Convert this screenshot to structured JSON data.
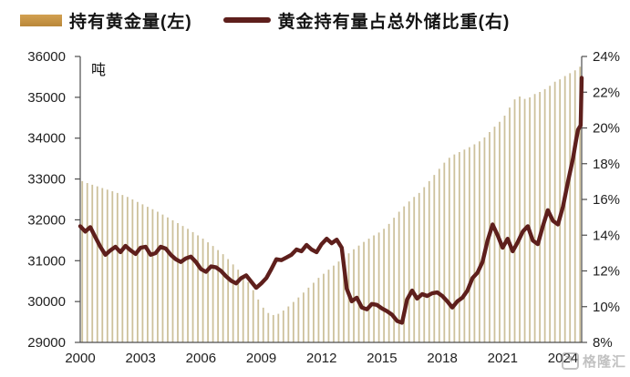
{
  "legend": {
    "bar_label": "持有黄金量(左)",
    "line_label": "黄金持有量占总外储比重(右)"
  },
  "watermark": {
    "text": "格隆汇"
  },
  "colors": {
    "bar": "#cdc19c",
    "line": "#5e1f1c",
    "legend_bar": "#c3923f",
    "axis": "#4d4d4d",
    "tick_text": "#1f1f1f"
  },
  "chart_data": {
    "type": "bar",
    "subtype": "bar+line combo, dual axis",
    "title": "",
    "unit_label": "吨",
    "legend_position": "top",
    "grid": false,
    "x_axis": {
      "ticks": [
        2000,
        2003,
        2006,
        2009,
        2012,
        2015,
        2018,
        2021,
        2024
      ],
      "range": [
        2000,
        2024.93
      ]
    },
    "left_axis": {
      "label": "吨",
      "ticks": [
        36000,
        35000,
        34000,
        33000,
        32000,
        31000,
        30000,
        29000
      ],
      "range": [
        29000,
        36000
      ]
    },
    "right_axis": {
      "ticks": [
        "24%",
        "22%",
        "20%",
        "18%",
        "16%",
        "14%",
        "12%",
        "10%",
        "8%"
      ],
      "tick_values": [
        24,
        22,
        20,
        18,
        16,
        14,
        12,
        10,
        8
      ],
      "range": [
        8,
        24
      ]
    },
    "series": [
      {
        "name": "持有黄金量(左)",
        "type": "bar",
        "axis": "left",
        "x_start": 2000.0,
        "x_step": 0.25,
        "values": [
          32950,
          32900,
          32860,
          32820,
          32780,
          32740,
          32700,
          32660,
          32610,
          32560,
          32500,
          32440,
          32380,
          32320,
          32260,
          32200,
          32130,
          32060,
          31990,
          31920,
          31850,
          31780,
          31700,
          31620,
          31540,
          31450,
          31360,
          31260,
          31160,
          31040,
          30910,
          30780,
          30640,
          30480,
          30280,
          30050,
          29850,
          29720,
          29670,
          29700,
          29780,
          29880,
          29990,
          30100,
          30220,
          30340,
          30460,
          30580,
          30680,
          30780,
          30880,
          30980,
          31080,
          31180,
          31280,
          31370,
          31460,
          31540,
          31620,
          31690,
          31780,
          31900,
          32050,
          32200,
          32330,
          32450,
          32560,
          32660,
          32800,
          32950,
          33100,
          33250,
          33400,
          33520,
          33600,
          33660,
          33720,
          33780,
          33850,
          33920,
          34020,
          34150,
          34280,
          34400,
          34550,
          34750,
          34950,
          35020,
          34960,
          35000,
          35080,
          35130,
          35200,
          35280,
          35380,
          35440,
          35520,
          35590,
          35660,
          35750
        ]
      },
      {
        "name": "黄金持有量占总外储比重(右)",
        "type": "line",
        "axis": "right",
        "points": [
          [
            2000.0,
            14.5
          ],
          [
            2000.25,
            14.2
          ],
          [
            2000.5,
            14.45
          ],
          [
            2000.75,
            13.9
          ],
          [
            2001.0,
            13.35
          ],
          [
            2001.25,
            12.9
          ],
          [
            2001.5,
            13.15
          ],
          [
            2001.75,
            13.35
          ],
          [
            2002.0,
            13.05
          ],
          [
            2002.25,
            13.4
          ],
          [
            2002.5,
            13.15
          ],
          [
            2002.75,
            12.95
          ],
          [
            2003.0,
            13.3
          ],
          [
            2003.25,
            13.35
          ],
          [
            2003.5,
            12.9
          ],
          [
            2003.75,
            13.0
          ],
          [
            2004.0,
            13.35
          ],
          [
            2004.25,
            13.25
          ],
          [
            2004.5,
            12.9
          ],
          [
            2004.75,
            12.65
          ],
          [
            2005.0,
            12.5
          ],
          [
            2005.25,
            12.7
          ],
          [
            2005.5,
            12.8
          ],
          [
            2005.75,
            12.5
          ],
          [
            2006.0,
            12.1
          ],
          [
            2006.25,
            11.95
          ],
          [
            2006.5,
            12.25
          ],
          [
            2006.75,
            12.2
          ],
          [
            2007.0,
            12.0
          ],
          [
            2007.25,
            11.7
          ],
          [
            2007.5,
            11.45
          ],
          [
            2007.75,
            11.3
          ],
          [
            2008.0,
            11.6
          ],
          [
            2008.25,
            11.75
          ],
          [
            2008.5,
            11.4
          ],
          [
            2008.75,
            11.05
          ],
          [
            2009.0,
            11.3
          ],
          [
            2009.25,
            11.6
          ],
          [
            2009.5,
            12.1
          ],
          [
            2009.75,
            12.65
          ],
          [
            2010.0,
            12.6
          ],
          [
            2010.25,
            12.75
          ],
          [
            2010.5,
            12.9
          ],
          [
            2010.75,
            13.2
          ],
          [
            2011.0,
            13.1
          ],
          [
            2011.25,
            13.45
          ],
          [
            2011.5,
            13.2
          ],
          [
            2011.75,
            13.05
          ],
          [
            2012.0,
            13.5
          ],
          [
            2012.25,
            13.8
          ],
          [
            2012.5,
            13.55
          ],
          [
            2012.75,
            13.75
          ],
          [
            2013.0,
            13.3
          ],
          [
            2013.25,
            11.0
          ],
          [
            2013.5,
            10.3
          ],
          [
            2013.75,
            10.5
          ],
          [
            2014.0,
            9.95
          ],
          [
            2014.25,
            9.85
          ],
          [
            2014.5,
            10.15
          ],
          [
            2014.75,
            10.1
          ],
          [
            2015.0,
            9.9
          ],
          [
            2015.25,
            9.75
          ],
          [
            2015.5,
            9.55
          ],
          [
            2015.75,
            9.2
          ],
          [
            2016.0,
            9.1
          ],
          [
            2016.25,
            10.4
          ],
          [
            2016.5,
            10.9
          ],
          [
            2016.75,
            10.45
          ],
          [
            2017.0,
            10.7
          ],
          [
            2017.25,
            10.6
          ],
          [
            2017.5,
            10.75
          ],
          [
            2017.75,
            10.8
          ],
          [
            2018.0,
            10.6
          ],
          [
            2018.25,
            10.3
          ],
          [
            2018.5,
            9.95
          ],
          [
            2018.75,
            10.3
          ],
          [
            2019.0,
            10.5
          ],
          [
            2019.25,
            10.9
          ],
          [
            2019.5,
            11.6
          ],
          [
            2019.75,
            11.9
          ],
          [
            2020.0,
            12.5
          ],
          [
            2020.25,
            13.7
          ],
          [
            2020.5,
            14.6
          ],
          [
            2020.75,
            14.0
          ],
          [
            2021.0,
            13.3
          ],
          [
            2021.25,
            13.8
          ],
          [
            2021.5,
            13.1
          ],
          [
            2021.75,
            13.6
          ],
          [
            2022.0,
            14.2
          ],
          [
            2022.25,
            14.5
          ],
          [
            2022.5,
            13.7
          ],
          [
            2022.75,
            13.5
          ],
          [
            2023.0,
            14.5
          ],
          [
            2023.25,
            15.4
          ],
          [
            2023.5,
            14.8
          ],
          [
            2023.75,
            14.6
          ],
          [
            2024.0,
            15.6
          ],
          [
            2024.25,
            17.0
          ],
          [
            2024.5,
            18.3
          ],
          [
            2024.65,
            19.3
          ],
          [
            2024.75,
            19.9
          ],
          [
            2024.88,
            20.15
          ],
          [
            2024.93,
            22.8
          ]
        ]
      }
    ]
  }
}
